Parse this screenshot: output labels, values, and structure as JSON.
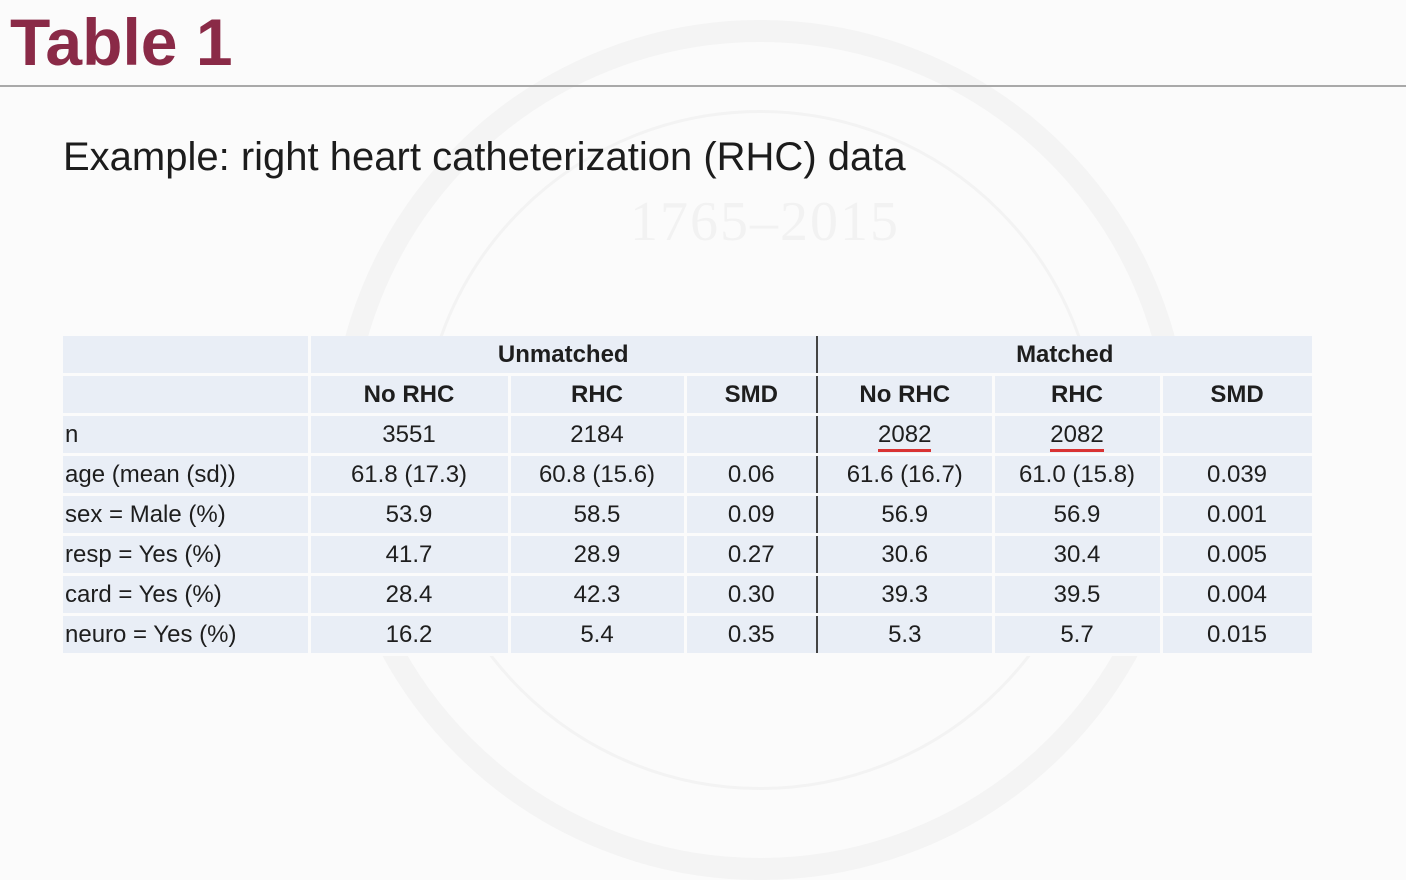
{
  "slide": {
    "title": "Table 1",
    "subtitle": "Example:  right heart catheterization (RHC) data"
  },
  "table": {
    "groups": [
      "Unmatched",
      "Matched"
    ],
    "columns": [
      "No RHC",
      "RHC",
      "SMD",
      "No RHC",
      "RHC",
      "SMD"
    ],
    "rows": [
      {
        "label": "n",
        "values": [
          "3551",
          "2184",
          "",
          "2082",
          "2082",
          ""
        ]
      },
      {
        "label": "age (mean (sd))",
        "values": [
          "61.8 (17.3)",
          "60.8 (15.6)",
          "0.06",
          "61.6 (16.7)",
          "61.0 (15.8)",
          "0.039"
        ]
      },
      {
        "label": "sex = Male (%)",
        "values": [
          "53.9",
          "58.5",
          "0.09",
          "56.9",
          "56.9",
          "0.001"
        ]
      },
      {
        "label": "resp = Yes (%)",
        "values": [
          "41.7",
          "28.9",
          "0.27",
          "30.6",
          "30.4",
          "0.005"
        ]
      },
      {
        "label": "card = Yes (%)",
        "values": [
          "28.4",
          "42.3",
          "0.30",
          "39.3",
          "39.5",
          "0.004"
        ]
      },
      {
        "label": "neuro = Yes (%)",
        "values": [
          "16.2",
          "5.4",
          "0.35",
          "5.3",
          "5.7",
          "0.015"
        ]
      }
    ]
  },
  "colors": {
    "title": "#8a2a47",
    "table_bg": "#e9eef6",
    "annotation": "#d93333"
  }
}
